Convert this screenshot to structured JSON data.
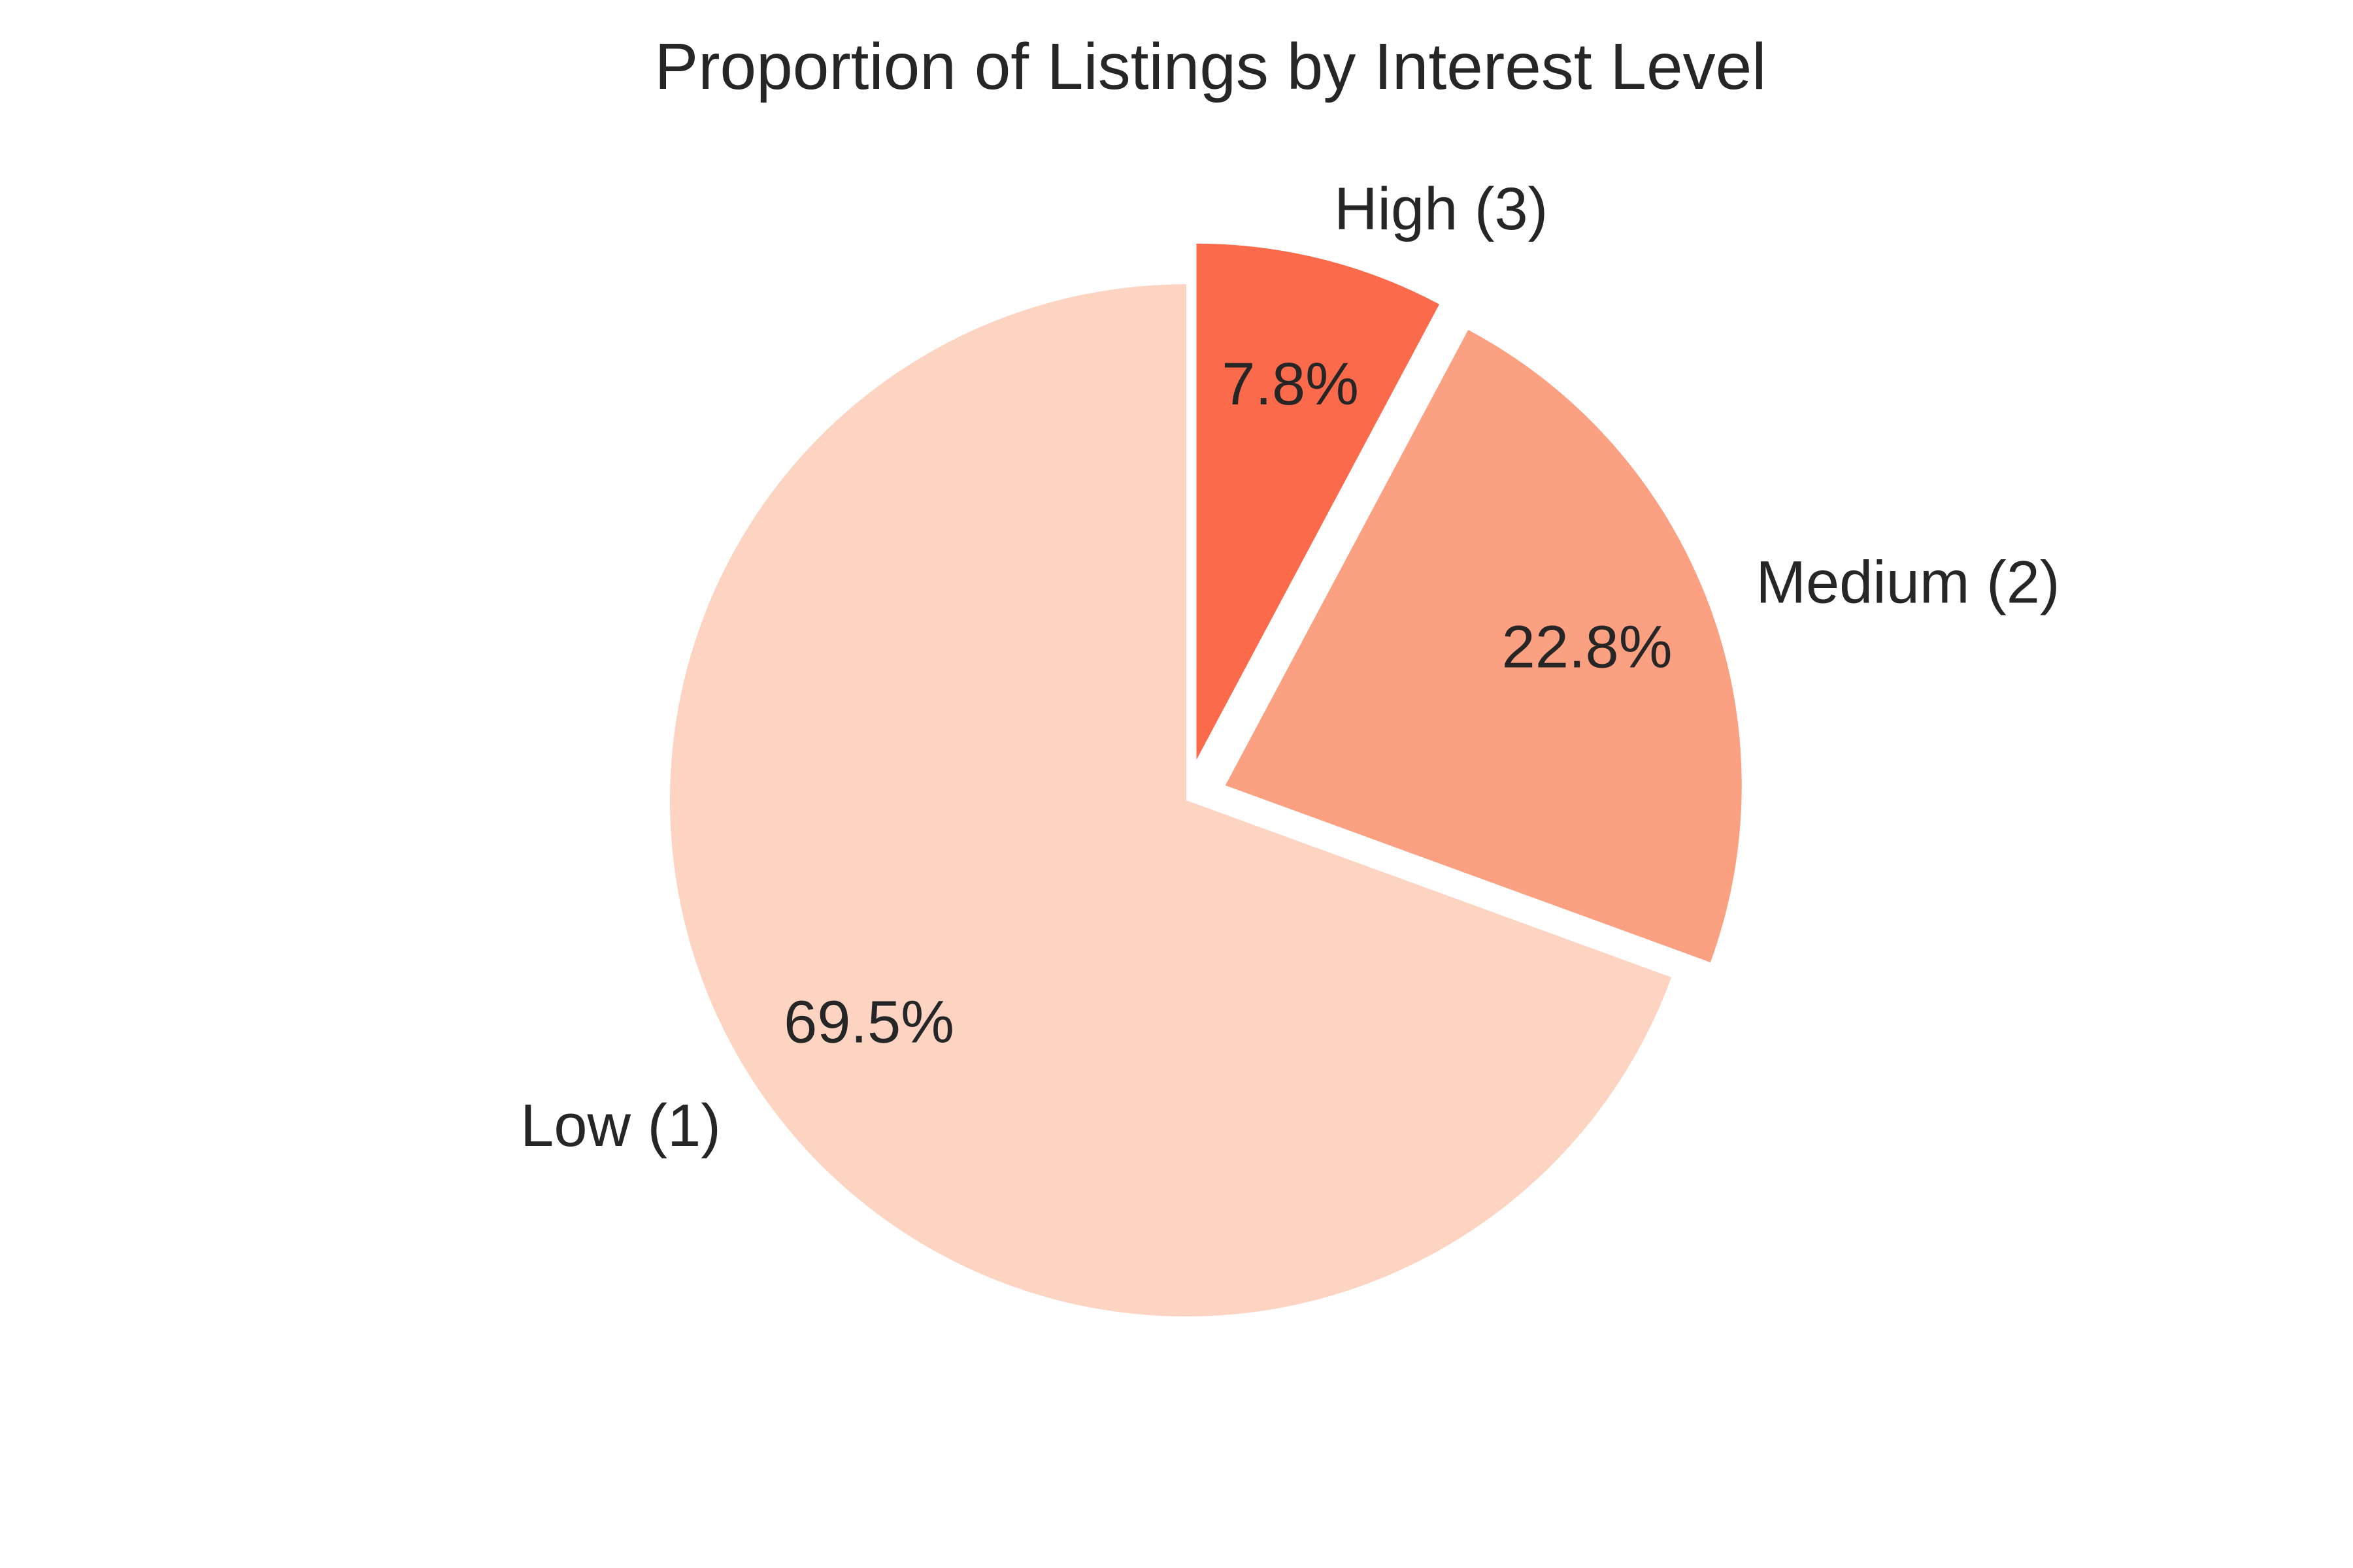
{
  "chart_data": {
    "type": "pie",
    "title": "Proportion of Listings by Interest Level",
    "start_angle_deg": 90,
    "direction": "clockwise",
    "slices": [
      {
        "label": "High (3)",
        "value": 7.8,
        "pct_label": "7.8%",
        "color": "#fb6a4a",
        "exploded": true
      },
      {
        "label": "Medium (2)",
        "value": 22.8,
        "pct_label": "22.8%",
        "color": "#fca082",
        "exploded": true
      },
      {
        "label": "Low (1)",
        "value": 69.5,
        "pct_label": "69.5%",
        "color": "#fdd4c2",
        "exploded": false
      }
    ]
  }
}
